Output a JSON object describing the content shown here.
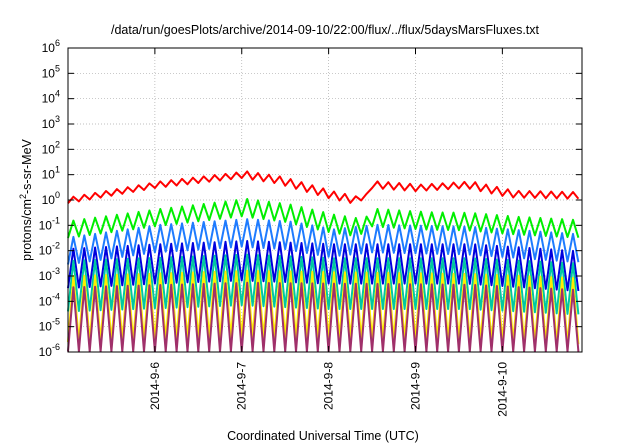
{
  "chart_data": {
    "type": "line",
    "title": "/data/run/goesPlots/archive/2014-09-10/22:00/flux/../flux/5daysMarsFluxes.txt",
    "xlabel": "Coordinated Universal Time (UTC)",
    "ylabel": {
      "base": "protons/cm",
      "sup": "2",
      "rest": "-s-sr-MeV"
    },
    "yscale": "log",
    "ylim": [
      1e-06,
      1000000.0
    ],
    "xlim": [
      "2014-09-05T00:00",
      "2014-09-10T22:00"
    ],
    "grid": true,
    "legend": "none",
    "x_ticks": [
      "2014-9-6",
      "2014-9-7",
      "2014-9-8",
      "2014-9-9",
      "2014-9-10"
    ],
    "y_ticks": [
      {
        "base": "10",
        "exp": "6"
      },
      {
        "base": "10",
        "exp": "5"
      },
      {
        "base": "10",
        "exp": "4"
      },
      {
        "base": "10",
        "exp": "3"
      },
      {
        "base": "10",
        "exp": "2"
      },
      {
        "base": "10",
        "exp": "1"
      },
      {
        "base": "10",
        "exp": "0"
      },
      {
        "base": "10",
        "exp": "-1"
      },
      {
        "base": "10",
        "exp": "-2"
      },
      {
        "base": "10",
        "exp": "-3"
      },
      {
        "base": "10",
        "exp": "-4"
      },
      {
        "base": "10",
        "exp": "-5"
      },
      {
        "base": "10",
        "exp": "-6"
      }
    ],
    "sawtooth_period_hours": 3,
    "series": [
      {
        "color": "#ff0000",
        "amplitude": 1.35,
        "baseline": [
          [
            0,
            1.0
          ],
          [
            24,
            4.0
          ],
          [
            48,
            10.0
          ],
          [
            58,
            6.0
          ],
          [
            72,
            1.6
          ],
          [
            80,
            0.9
          ],
          [
            84,
            4.0
          ],
          [
            96,
            3.0
          ],
          [
            110,
            4.0
          ],
          [
            122,
            1.7
          ],
          [
            142,
            1.5
          ]
        ]
      },
      {
        "color": "#00ee00",
        "amplitude": 2.2,
        "baseline": [
          [
            0,
            0.07
          ],
          [
            24,
            0.2
          ],
          [
            48,
            0.5
          ],
          [
            60,
            0.3
          ],
          [
            72,
            0.12
          ],
          [
            80,
            0.08
          ],
          [
            84,
            0.2
          ],
          [
            98,
            0.15
          ],
          [
            110,
            0.14
          ],
          [
            122,
            0.1
          ],
          [
            142,
            0.07
          ]
        ]
      },
      {
        "color": "#1e7bff",
        "amplitude": 3.5,
        "baseline": [
          [
            0,
            0.01
          ],
          [
            24,
            0.03
          ],
          [
            48,
            0.05
          ],
          [
            60,
            0.04
          ],
          [
            72,
            0.02
          ],
          [
            84,
            0.03
          ],
          [
            110,
            0.025
          ],
          [
            142,
            0.012
          ]
        ]
      },
      {
        "color": "#0000dd",
        "amplitude": 6.0,
        "baseline": [
          [
            0,
            0.002
          ],
          [
            24,
            0.003
          ],
          [
            48,
            0.004
          ],
          [
            72,
            0.003
          ],
          [
            110,
            0.003
          ],
          [
            142,
            0.0015
          ]
        ]
      },
      {
        "color": "#00c8a0",
        "amplitude": 10.0,
        "baseline": [
          [
            0,
            0.0004
          ],
          [
            48,
            0.0007
          ],
          [
            72,
            0.0005
          ],
          [
            110,
            0.0005
          ],
          [
            142,
            0.0003
          ]
        ]
      },
      {
        "color": "#ffee00",
        "amplitude": 20.0,
        "baseline": [
          [
            0,
            5e-05
          ],
          [
            48,
            8e-05
          ],
          [
            110,
            6e-05
          ],
          [
            142,
            4e-05
          ]
        ]
      },
      {
        "color": "#a0306a",
        "amplitude": 45.0,
        "baseline": [
          [
            0,
            8e-06
          ],
          [
            48,
            1.2e-05
          ],
          [
            110,
            1e-05
          ],
          [
            142,
            6e-06
          ]
        ]
      }
    ]
  }
}
